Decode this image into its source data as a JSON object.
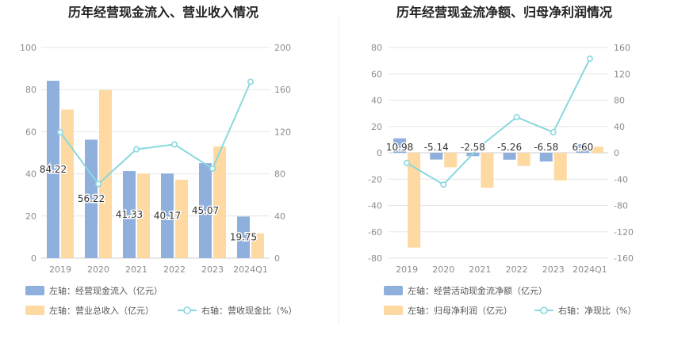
{
  "colors": {
    "bar_blue": "#8fb0dd",
    "bar_orange": "#fed9a1",
    "line_teal": "#8ad8df",
    "grid": "#e6e6e6",
    "tick_text": "#8c8c8c",
    "title": "#222222"
  },
  "chart_data": [
    {
      "type": "bar",
      "title": "历年经营现金流入、营业收入情况",
      "categories": [
        "2019",
        "2020",
        "2021",
        "2022",
        "2023",
        "2024Q1"
      ],
      "y_left_ticks": [
        "0",
        "20",
        "40",
        "60",
        "80",
        "100"
      ],
      "y_right_ticks": [
        "0",
        "40",
        "80",
        "120",
        "160",
        "200"
      ],
      "ylim_left": [
        0,
        100
      ],
      "ylim_right": [
        0,
        200
      ],
      "series": [
        {
          "name": "左轴：经营现金流入（亿元）",
          "axis": "left",
          "kind": "bar",
          "color": "#8fb0dd",
          "values": [
            84.22,
            56.22,
            41.33,
            40.17,
            45.07,
            19.75
          ],
          "labels": [
            "84.22",
            "56.22",
            "41.33",
            "40.17",
            "45.07",
            "19.75"
          ]
        },
        {
          "name": "左轴：营业总收入（亿元）",
          "axis": "left",
          "kind": "bar",
          "color": "#fed9a1",
          "values": [
            70.5,
            79.8,
            40.0,
            37.2,
            53.0,
            11.8
          ]
        },
        {
          "name": "右轴：营收现金比（%）",
          "axis": "right",
          "kind": "line",
          "color": "#8ad8df",
          "values": [
            119.5,
            70.4,
            103.3,
            108.0,
            85.0,
            167.4
          ]
        }
      ],
      "legend_rows": [
        [
          "左轴：经营现金流入（亿元）"
        ],
        [
          "左轴：营业总收入（亿元）",
          "右轴：营收现金比（%）"
        ]
      ]
    },
    {
      "type": "bar",
      "title": "历年经营现金流净额、归母净利润情况",
      "categories": [
        "2019",
        "2020",
        "2021",
        "2022",
        "2023",
        "2024Q1"
      ],
      "y_left_ticks": [
        "-80",
        "-60",
        "-40",
        "-20",
        "0",
        "20",
        "40",
        "60",
        "80"
      ],
      "y_right_ticks": [
        "-160",
        "-120",
        "-80",
        "-40",
        "0",
        "40",
        "80",
        "120",
        "160"
      ],
      "ylim_left": [
        -80,
        80
      ],
      "ylim_right": [
        -160,
        160
      ],
      "series": [
        {
          "name": "左轴：经营活动现金流净额（亿元）",
          "axis": "left",
          "kind": "bar",
          "color": "#8fb0dd",
          "values": [
            10.98,
            -5.14,
            -2.58,
            -5.26,
            -6.58,
            6.6
          ],
          "labels": [
            "10.98",
            "-5.14",
            "-2.58",
            "-5.26",
            "-6.58",
            "6.60"
          ]
        },
        {
          "name": "左轴：归母净利润（亿元）",
          "axis": "left",
          "kind": "bar",
          "color": "#fed9a1",
          "values": [
            -72.0,
            -11.0,
            -26.5,
            -10.0,
            -21.0,
            4.6
          ]
        },
        {
          "name": "右轴：净现比（%）",
          "axis": "right",
          "kind": "line",
          "color": "#8ad8df",
          "values": [
            -15.3,
            -48.2,
            9.8,
            54.2,
            31.2,
            143.0
          ]
        }
      ],
      "legend_rows": [
        [
          "左轴：经营活动现金流净额（亿元）"
        ],
        [
          "左轴：归母净利润（亿元）",
          "右轴：净现比（%）"
        ]
      ]
    }
  ]
}
